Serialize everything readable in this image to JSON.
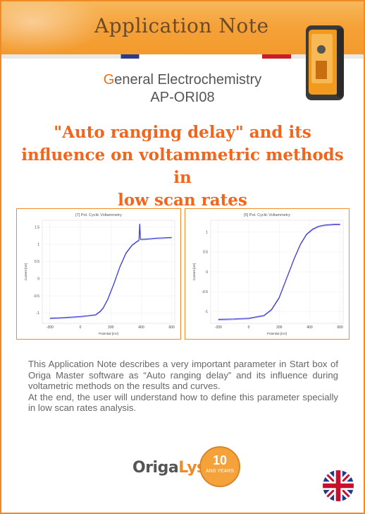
{
  "header": {
    "title": "Application Note"
  },
  "doc": {
    "category_first": "G",
    "category_rest": "eneral Electrochemistry",
    "code": "AP-ORI08",
    "title_lines": [
      "\"Auto ranging delay\" and its",
      "influence on voltammetric methods in",
      "low scan rates"
    ]
  },
  "chart_data": [
    {
      "type": "line",
      "title": "[7] Pot. Cyclic Voltammetry",
      "xlabel": "Potential [mV]",
      "ylabel": "Current [nA]",
      "xlim": [
        -250,
        620
      ],
      "ylim": [
        -1.3,
        1.7
      ],
      "xticks": [
        -200,
        0,
        200,
        400,
        600
      ],
      "yticks": [
        -1,
        -0.5,
        0,
        0.5,
        1,
        1.5
      ],
      "series": [
        {
          "x": [
            -200,
            -100,
            0,
            100,
            130,
            150,
            180,
            220,
            260,
            300,
            340,
            370,
            385,
            390,
            395,
            420,
            500,
            600
          ],
          "y": [
            -1.15,
            -1.13,
            -1.1,
            -1.05,
            -0.95,
            -0.85,
            -0.6,
            -0.15,
            0.35,
            0.75,
            0.98,
            1.08,
            1.12,
            1.6,
            1.15,
            1.15,
            1.18,
            1.2
          ]
        }
      ]
    },
    {
      "type": "line",
      "title": "[5] Pot. Cyclic Voltammetry",
      "xlabel": "Potential [mV]",
      "ylabel": "Current [nA]",
      "xlim": [
        -250,
        620
      ],
      "ylim": [
        -1.3,
        1.3
      ],
      "xticks": [
        -200,
        0,
        200,
        400,
        600
      ],
      "yticks": [
        -1,
        -0.5,
        0,
        0.5,
        1
      ],
      "series": [
        {
          "x": [
            -200,
            -100,
            0,
            100,
            150,
            200,
            230,
            260,
            300,
            340,
            380,
            420,
            460,
            500,
            560,
            600
          ],
          "y": [
            -1.2,
            -1.19,
            -1.17,
            -1.1,
            -0.95,
            -0.65,
            -0.35,
            -0.05,
            0.35,
            0.7,
            0.95,
            1.08,
            1.15,
            1.18,
            1.2,
            1.2
          ]
        }
      ]
    }
  ],
  "description": {
    "p1": "This Application Note describes a very important parameter in Start box of Origa Master software as “Auto ranging delay” and its influence during voltametric methods on the results and curves.",
    "p2": "At the end, the user will understand how to define this parameter specially in low scan rates analysis."
  },
  "footer": {
    "logo_main": "Origa",
    "logo_accent": "Lys",
    "badge_num": "10",
    "badge_text": "ANS YEARS"
  },
  "colors": {
    "accent": "#f2651d",
    "border": "#f08a24",
    "curve": "#3a3ad6"
  }
}
